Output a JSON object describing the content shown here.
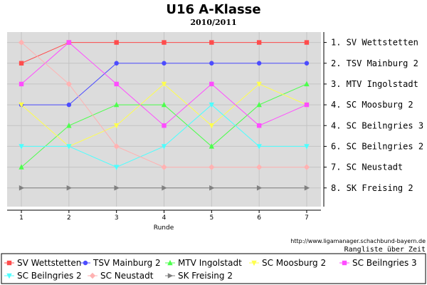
{
  "chart_data": {
    "type": "line",
    "title": "U16 A-Klasse",
    "subtitle": "2010/2011",
    "xlabel": "Runde",
    "x": [
      1,
      2,
      3,
      4,
      5,
      6,
      7
    ],
    "xlim": [
      0.7,
      7.3
    ],
    "ylim": [
      0.5,
      8.9
    ],
    "y_inverted": true,
    "grid": true,
    "legend_position": "bottom",
    "right_axis_labels": [
      "1. SV Wettstetten",
      "2. TSV Mainburg 2",
      "3. MTV Ingolstadt",
      "4. SC Moosburg 2",
      "4. SC Beilngries 3",
      "6. SC Beilngries 2",
      "7. SC Neustadt",
      "8. SK Freising 2"
    ],
    "series": [
      {
        "name": "SV Wettstetten",
        "color": "#ff4c4c",
        "marker": "square",
        "values": [
          2,
          1,
          1,
          1,
          1,
          1,
          1
        ]
      },
      {
        "name": "TSV Mainburg 2",
        "color": "#4c4cff",
        "marker": "circle",
        "values": [
          4,
          4,
          2,
          2,
          2,
          2,
          2
        ]
      },
      {
        "name": "MTV Ingolstadt",
        "color": "#4cff4c",
        "marker": "triangle-up",
        "values": [
          7,
          5,
          4,
          4,
          6,
          4,
          3
        ]
      },
      {
        "name": "SC Moosburg 2",
        "color": "#ffff4c",
        "marker": "triangle-down",
        "values": [
          4,
          6,
          5,
          3,
          5,
          3,
          4
        ]
      },
      {
        "name": "SC Beilngries 3",
        "color": "#ff4cff",
        "marker": "square",
        "values": [
          3,
          1,
          3,
          5,
          3,
          5,
          4
        ]
      },
      {
        "name": "SC Beilngries 2",
        "color": "#4cffff",
        "marker": "triangle-down",
        "values": [
          6,
          6,
          7,
          6,
          4,
          6,
          6
        ]
      },
      {
        "name": "SC Neustadt",
        "color": "#ffb2b2",
        "marker": "diamond",
        "values": [
          1,
          3,
          6,
          7,
          7,
          7,
          7
        ]
      },
      {
        "name": "SK Freising 2",
        "color": "#808080",
        "marker": "triangle-right",
        "values": [
          8,
          8,
          8,
          8,
          8,
          8,
          8
        ]
      }
    ],
    "source_text": "http://www.ligamanager.schachbund-bayern.de",
    "note_text": "Rangliste über Zeit"
  }
}
